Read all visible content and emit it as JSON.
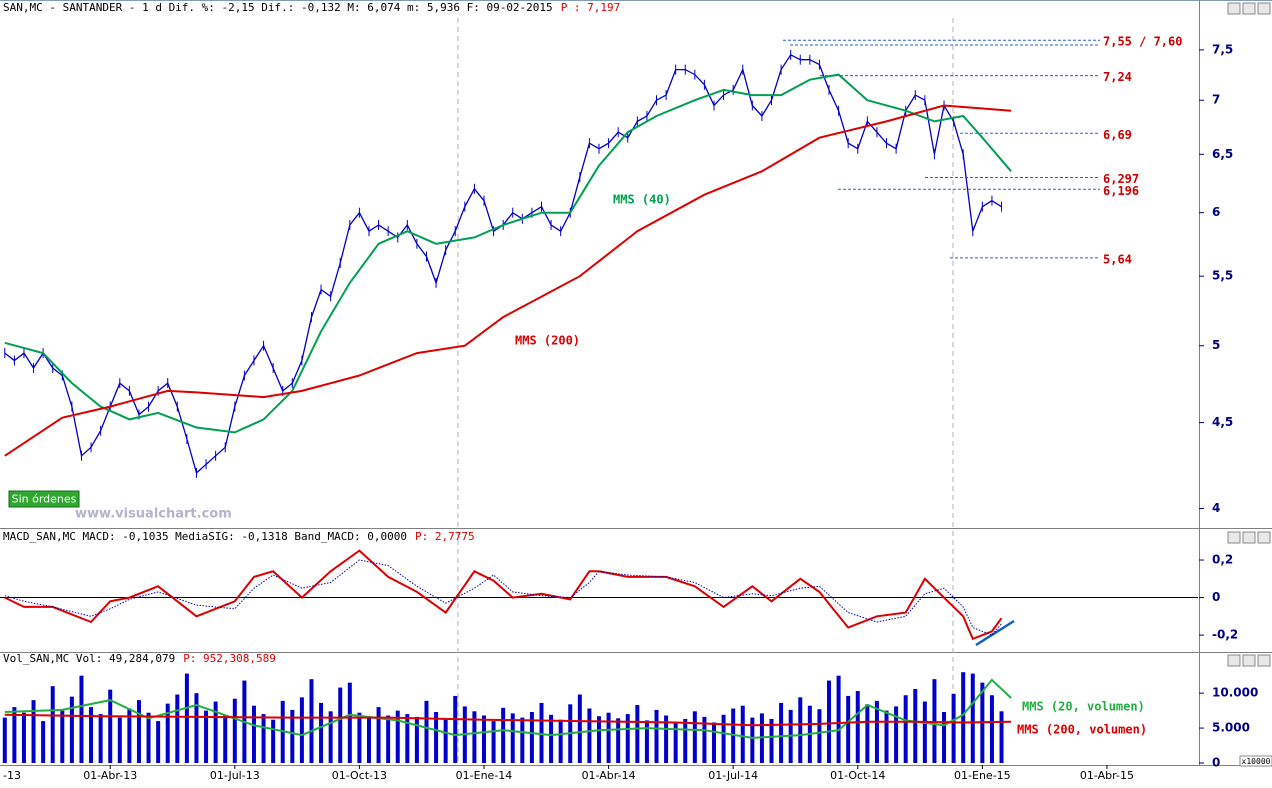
{
  "chart_data": [
    {
      "type": "line",
      "title": "SAN,MC - SANTANDER -  1 d Dif. %: -2,15 Dif.: -0,132 M: 6,074 m: 5,936 F: 09-02-2015",
      "title_price": "P : 7,197",
      "log": true,
      "ylim": [
        3.9,
        7.9
      ],
      "xlim": [
        -0.5,
        124.5
      ],
      "yticks": [
        4,
        {
          "value": 4.5,
          "label": "4,5"
        },
        5,
        {
          "value": 5.5,
          "label": "5,5"
        },
        6,
        {
          "value": 6.5,
          "label": "6,5"
        },
        7,
        {
          "value": 7.5,
          "label": "7,5"
        }
      ],
      "color": "#0000cc",
      "values": [
        4.95,
        4.9,
        4.95,
        4.85,
        4.95,
        4.85,
        4.8,
        4.6,
        4.3,
        4.35,
        4.45,
        4.6,
        4.75,
        4.7,
        4.55,
        4.6,
        4.7,
        4.75,
        4.6,
        4.4,
        4.2,
        4.25,
        4.3,
        4.35,
        4.6,
        4.8,
        4.9,
        5.0,
        4.85,
        4.7,
        4.75,
        4.9,
        5.2,
        5.4,
        5.35,
        5.6,
        5.9,
        6.0,
        5.85,
        5.9,
        5.85,
        5.8,
        5.9,
        5.75,
        5.65,
        5.45,
        5.7,
        5.85,
        6.05,
        6.2,
        6.1,
        5.85,
        5.9,
        6.0,
        5.95,
        6.0,
        6.05,
        5.9,
        5.85,
        6.0,
        6.3,
        6.6,
        6.55,
        6.6,
        6.7,
        6.65,
        6.8,
        6.85,
        7.0,
        7.05,
        7.3,
        7.3,
        7.25,
        7.15,
        6.95,
        7.05,
        7.1,
        7.3,
        6.95,
        6.85,
        7.0,
        7.3,
        7.45,
        7.4,
        7.4,
        7.35,
        7.1,
        6.9,
        6.6,
        6.55,
        6.8,
        6.7,
        6.6,
        6.55,
        6.9,
        7.05,
        7.0,
        6.5,
        6.95,
        6.8,
        6.5,
        5.85,
        6.05,
        6.1,
        6.05
      ],
      "series": [
        {
          "name": "MMS (40)",
          "color": "#00a050",
          "x": [
            0,
            4,
            7,
            10,
            13,
            16,
            20,
            24,
            27,
            30,
            33,
            36,
            39,
            42,
            45,
            49,
            52,
            56,
            59,
            62,
            65,
            68,
            72,
            75,
            78,
            81,
            84,
            87,
            90,
            94,
            97,
            100,
            102,
            105
          ],
          "values": [
            5.02,
            4.95,
            4.75,
            4.6,
            4.52,
            4.56,
            4.47,
            4.44,
            4.52,
            4.7,
            5.1,
            5.45,
            5.75,
            5.85,
            5.75,
            5.8,
            5.9,
            6.0,
            6.0,
            6.4,
            6.7,
            6.85,
            7.0,
            7.1,
            7.05,
            7.05,
            7.2,
            7.25,
            7.0,
            6.9,
            6.8,
            6.85,
            6.65,
            6.35
          ]
        },
        {
          "name": "MMS (200)",
          "color": "#dd0000",
          "x": [
            0,
            6,
            11,
            17,
            20,
            27,
            31,
            37,
            43,
            48,
            52,
            60,
            66,
            73,
            79,
            85,
            92,
            98,
            105
          ],
          "values": [
            4.3,
            4.53,
            4.6,
            4.7,
            4.69,
            4.66,
            4.7,
            4.8,
            4.95,
            5.0,
            5.2,
            5.5,
            5.85,
            6.15,
            6.35,
            6.65,
            6.8,
            6.95,
            6.9
          ]
        }
      ],
      "levels": [
        {
          "values": [
            7.55,
            7.6
          ],
          "label": "7,55 / 7,60"
        },
        {
          "values": [
            7.24
          ],
          "label": "7,24"
        },
        {
          "values": [
            6.69
          ],
          "label": "6,69"
        },
        {
          "values": [
            6.297
          ],
          "label": "6,297"
        },
        {
          "values": [
            6.196
          ],
          "label": "6,196"
        },
        {
          "values": [
            5.64
          ],
          "label": "5,64"
        }
      ]
    },
    {
      "type": "line",
      "title": "MACD_SAN,MC MACD: -0,1035 MediaSIG: -0,1318 Band_MACD: 0,0000",
      "title_price": "P: 2,7775",
      "ylim": [
        -0.29,
        0.28
      ],
      "xlim": [
        -0.5,
        124.5
      ],
      "zero_line": true,
      "yticks": [
        {
          "value": 0.2,
          "label": "0,2"
        },
        0,
        {
          "value": -0.2,
          "label": "-0,2"
        }
      ],
      "series": [
        {
          "color": "#dd0000",
          "style": "solid",
          "x": [
            0,
            2,
            5,
            9,
            11,
            13,
            16,
            20,
            24,
            26,
            28,
            31,
            34,
            37,
            40,
            43,
            46,
            49,
            51,
            53,
            56,
            59,
            61,
            62,
            65,
            69,
            72,
            75,
            78,
            80,
            83,
            85,
            88,
            91,
            94,
            96,
            98,
            100,
            101,
            103,
            104
          ],
          "values": [
            0.0,
            -0.05,
            -0.05,
            -0.13,
            -0.02,
            0.0,
            0.06,
            -0.1,
            -0.02,
            0.11,
            0.14,
            0.0,
            0.14,
            0.25,
            0.11,
            0.03,
            -0.08,
            0.14,
            0.09,
            0.0,
            0.02,
            -0.01,
            0.14,
            0.14,
            0.11,
            0.11,
            0.06,
            -0.05,
            0.06,
            -0.02,
            0.1,
            0.03,
            -0.16,
            -0.1,
            -0.08,
            0.1,
            0.0,
            -0.1,
            -0.22,
            -0.18,
            -0.11
          ]
        },
        {
          "color": "#0000aa",
          "style": "dotted",
          "x": [
            0,
            2,
            5,
            9,
            11,
            13,
            16,
            20,
            24,
            26,
            28,
            31,
            34,
            37,
            40,
            43,
            46,
            49,
            51,
            53,
            56,
            59,
            61,
            62,
            65,
            69,
            72,
            75,
            78,
            80,
            83,
            85,
            88,
            91,
            94,
            96,
            98,
            100,
            101,
            103,
            104
          ],
          "values": [
            0.01,
            -0.02,
            -0.05,
            -0.1,
            -0.06,
            -0.01,
            0.03,
            -0.04,
            -0.06,
            0.05,
            0.12,
            0.05,
            0.08,
            0.2,
            0.17,
            0.06,
            -0.03,
            0.05,
            0.12,
            0.03,
            0.01,
            0.0,
            0.08,
            0.14,
            0.12,
            0.11,
            0.08,
            0.0,
            0.02,
            0.01,
            0.05,
            0.06,
            -0.08,
            -0.13,
            -0.1,
            0.02,
            0.05,
            -0.05,
            -0.16,
            -0.2,
            -0.14
          ]
        }
      ]
    },
    {
      "type": "bar",
      "title": "Vol_SAN,MC Vol: 49,284,079",
      "title_price": "P: 952,308,589",
      "ylim": [
        0,
        13600
      ],
      "xlim": [
        -0.5,
        124.5
      ],
      "y_unit": "x10000",
      "yticks": [
        0,
        {
          "value": 5000,
          "label": "5.000"
        },
        {
          "value": 10000,
          "label": "10.000"
        }
      ],
      "xticks": [
        {
          "value": -2,
          "label": "-13"
        },
        {
          "value": 11,
          "label": "01-Abr-13"
        },
        {
          "value": 24,
          "label": "01-Jul-13"
        },
        {
          "value": 37,
          "label": "01-Oct-13"
        },
        {
          "value": 50,
          "label": "01-Ene-14"
        },
        {
          "value": 63,
          "label": "01-Abr-14"
        },
        {
          "value": 76,
          "label": "01-Jul-14"
        },
        {
          "value": 89,
          "label": "01-Oct-14"
        },
        {
          "value": 102,
          "label": "01-Ene-15"
        },
        {
          "value": 115,
          "label": "01-Abr-15"
        }
      ],
      "color": "#0000cc",
      "values": [
        6500,
        8000,
        7200,
        9000,
        6000,
        11000,
        7500,
        9500,
        12500,
        8000,
        7000,
        10500,
        6500,
        7800,
        9000,
        7200,
        6000,
        8500,
        9800,
        12800,
        10000,
        7500,
        8800,
        6800,
        9200,
        11800,
        8200,
        7000,
        6200,
        8900,
        7600,
        9400,
        12000,
        8600,
        7400,
        10800,
        11500,
        7200,
        6400,
        8000,
        6800,
        7500,
        7000,
        6600,
        8900,
        7300,
        6200,
        9600,
        8100,
        7400,
        6800,
        6000,
        7900,
        7100,
        6500,
        7300,
        8600,
        6900,
        6200,
        8400,
        9800,
        7800,
        6700,
        7200,
        6400,
        7000,
        8300,
        6100,
        7600,
        6800,
        5900,
        6300,
        7400,
        6600,
        5800,
        6900,
        7800,
        8200,
        6500,
        7100,
        6300,
        8600,
        7600,
        9400,
        8200,
        7700,
        11800,
        12500,
        9600,
        10300,
        8400,
        8900,
        7500,
        8100,
        9700,
        10600,
        8800,
        12000,
        7300,
        9900,
        13000,
        12800,
        11500,
        9700,
        7400
      ],
      "series": [
        {
          "name": "MMS (20, volumen)",
          "color": "#20b040",
          "x": [
            0,
            6,
            11,
            15,
            20,
            26,
            31,
            36,
            41,
            47,
            52,
            57,
            62,
            67,
            73,
            78,
            83,
            87,
            90,
            94,
            98,
            100,
            103,
            105
          ],
          "values": [
            7300,
            7600,
            9000,
            6400,
            8300,
            5400,
            4000,
            6900,
            6100,
            4000,
            4700,
            4000,
            4700,
            5000,
            4700,
            3600,
            4000,
            4700,
            8300,
            6100,
            5400,
            6900,
            11900,
            9300
          ]
        },
        {
          "name": "MMS (200, volumen)",
          "color": "#dd0000",
          "x": [
            0,
            10,
            20,
            30,
            40,
            50,
            60,
            70,
            78,
            85,
            90,
            95,
            100,
            105
          ],
          "values": [
            6900,
            6700,
            6600,
            6500,
            6500,
            6200,
            6000,
            5800,
            5400,
            5600,
            5900,
            5900,
            5800,
            5900
          ]
        }
      ]
    }
  ],
  "button": "Sin órdenes",
  "watermark": "www.visualchart.com"
}
